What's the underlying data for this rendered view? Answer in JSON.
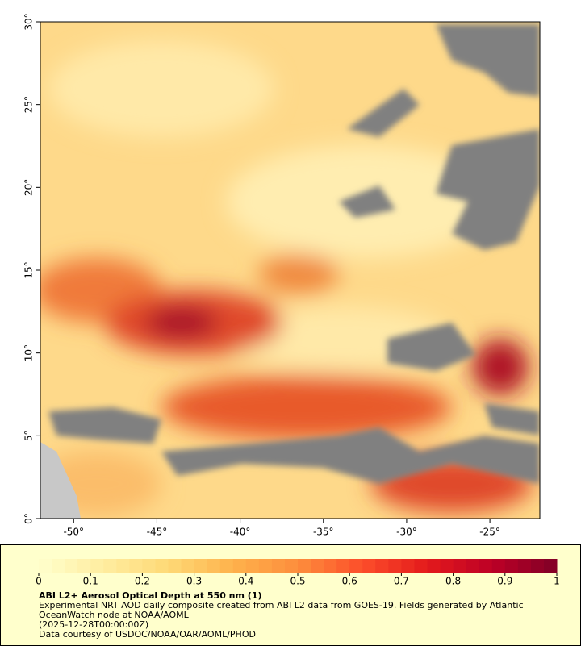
{
  "chart_data": {
    "type": "map",
    "xlim": [
      -52,
      -22
    ],
    "ylim": [
      0,
      30
    ],
    "xticks": [
      {
        "value": -50,
        "label": "-50°"
      },
      {
        "value": -45,
        "label": "-45°"
      },
      {
        "value": -40,
        "label": "-40°"
      },
      {
        "value": -35,
        "label": "-35°"
      },
      {
        "value": -30,
        "label": "-30°"
      },
      {
        "value": -25,
        "label": "-25°"
      }
    ],
    "yticks": [
      {
        "value": 0,
        "label": "0°"
      },
      {
        "value": 5,
        "label": "5°"
      },
      {
        "value": 10,
        "label": "10°"
      },
      {
        "value": 15,
        "label": "15°"
      },
      {
        "value": 20,
        "label": "20°"
      },
      {
        "value": 25,
        "label": "25°"
      },
      {
        "value": 30,
        "label": "30°"
      }
    ],
    "colorbar": {
      "lim": [
        0,
        1
      ],
      "ticks": [
        0,
        0.1,
        0.2,
        0.3,
        0.4,
        0.5,
        0.6,
        0.7,
        0.8,
        0.9,
        1
      ],
      "colors": [
        "#ffffcc",
        "#ffeda0",
        "#fed976",
        "#feb24c",
        "#fd8d3c",
        "#fc4e2a",
        "#e31a1c",
        "#bd0026",
        "#800026"
      ]
    },
    "title": "ABI L2+ Aerosol Optical Depth at 550 nm (1)",
    "description": "Experimental NRT AOD daily composite created from ABI L2 data from GOES-19. Fields generated by Atlantic OceanWatch node at NOAA/AOML",
    "time": "(2025-12-28T00:00:00Z)",
    "credit": "Data courtesy of USDOC/NOAA/OAR/AOML/PHOD"
  }
}
